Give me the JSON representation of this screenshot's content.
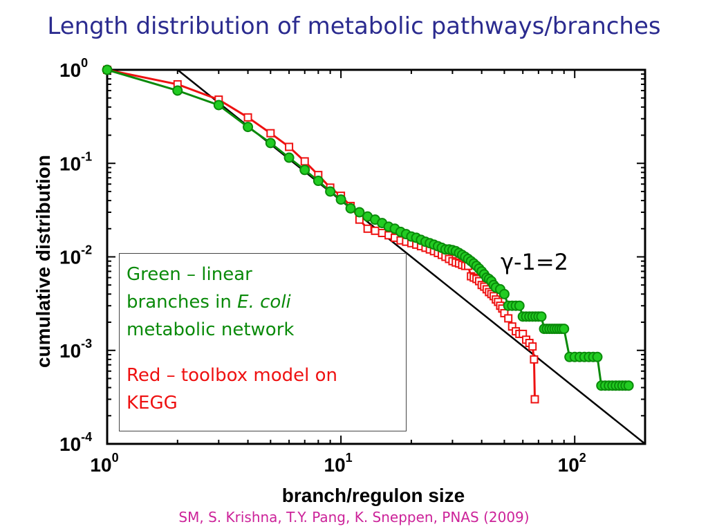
{
  "slide": {
    "title": "Length distribution of metabolic pathways/branches",
    "citation": "SM, S. Krishna, T.Y. Pang, K. Sneppen, PNAS (2009)"
  },
  "legend": {
    "green_line1": "Green – linear",
    "green_line2_pre": "branches in ",
    "green_line2_italic": "E. coli",
    "green_line3": "metabolic network",
    "red_line1": "Red – toolbox model on",
    "red_line2": "KEGG"
  },
  "annotation": {
    "gamma_symbol": "γ",
    "gamma_text": "-1=2"
  },
  "colors": {
    "green_series": "#0a8a0a",
    "green_marker_fill": "#22cc22",
    "red_series": "#ee1111",
    "fit_line": "#000000",
    "title": "#2b2b8f",
    "citation": "#cc2299"
  },
  "chart_data": {
    "type": "line",
    "title": "",
    "xlabel": "branch/regulon size",
    "ylabel": "cumulative distribution",
    "xscale": "log",
    "yscale": "log",
    "xlim": [
      1,
      200
    ],
    "ylim": [
      0.0001,
      1
    ],
    "x_ticks": [
      {
        "base": "10",
        "exp": "0",
        "value": 1
      },
      {
        "base": "10",
        "exp": "1",
        "value": 10
      },
      {
        "base": "10",
        "exp": "2",
        "value": 100
      }
    ],
    "y_ticks": [
      {
        "base": "10",
        "exp": "0",
        "value": 1
      },
      {
        "base": "10",
        "exp": "-1",
        "value": 0.1
      },
      {
        "base": "10",
        "exp": "-2",
        "value": 0.01
      },
      {
        "base": "10",
        "exp": "-3",
        "value": 0.001
      },
      {
        "base": "10",
        "exp": "-4",
        "value": 0.0001
      }
    ],
    "legend_position": "bottom-left",
    "series": [
      {
        "name": "Green – linear branches in E. coli metabolic network",
        "color": "#0a8a0a",
        "marker": "circle",
        "x": [
          1,
          2,
          3,
          4,
          5,
          6,
          7,
          8,
          9,
          10,
          11,
          12,
          13,
          14,
          15,
          16,
          17,
          18,
          19,
          20,
          21,
          22,
          23,
          24,
          25,
          26,
          27,
          28,
          29,
          30,
          31,
          32,
          33,
          34,
          35,
          36,
          37,
          38,
          39,
          40,
          41,
          42,
          43,
          44,
          45,
          46,
          48,
          50,
          52,
          54,
          56,
          58,
          60,
          62,
          64,
          66,
          68,
          70,
          72,
          74,
          76,
          78,
          80,
          82,
          84,
          86,
          88,
          90,
          95,
          100,
          105,
          110,
          115,
          120,
          125,
          130,
          135,
          140,
          145,
          150,
          155,
          160,
          165,
          170
        ],
        "y": [
          1,
          0.6,
          0.42,
          0.245,
          0.165,
          0.115,
          0.085,
          0.065,
          0.05,
          0.041,
          0.033,
          0.03,
          0.027,
          0.025,
          0.023,
          0.021,
          0.02,
          0.0185,
          0.0175,
          0.0165,
          0.016,
          0.0152,
          0.0145,
          0.014,
          0.0135,
          0.013,
          0.0125,
          0.012,
          0.012,
          0.0118,
          0.0115,
          0.011,
          0.0105,
          0.01,
          0.0095,
          0.009,
          0.0085,
          0.008,
          0.0075,
          0.007,
          0.0065,
          0.006,
          0.0058,
          0.0055,
          0.005,
          0.0047,
          0.0045,
          0.004,
          0.003,
          0.003,
          0.003,
          0.003,
          0.0023,
          0.0023,
          0.0023,
          0.0023,
          0.0023,
          0.0023,
          0.0023,
          0.0017,
          0.0017,
          0.0017,
          0.0017,
          0.0017,
          0.0017,
          0.0017,
          0.0017,
          0.0017,
          0.00085,
          0.00085,
          0.00085,
          0.00085,
          0.00085,
          0.00085,
          0.00085,
          0.00042,
          0.00042,
          0.00042,
          0.00042,
          0.00042,
          0.00042,
          0.00042,
          0.00042,
          0.00042
        ]
      },
      {
        "name": "Red – toolbox model on KEGG",
        "color": "#ee1111",
        "marker": "square",
        "x": [
          1,
          2,
          3,
          4,
          5,
          6,
          7,
          8,
          9,
          10,
          11,
          12,
          13,
          14,
          15,
          16,
          17,
          18,
          19,
          20,
          21,
          22,
          23,
          24,
          25,
          26,
          27,
          28,
          29,
          30,
          31,
          32,
          33,
          34,
          35,
          36,
          37,
          38,
          39,
          40,
          41,
          42,
          43,
          44,
          45,
          46,
          47,
          48,
          49,
          50,
          52,
          54,
          56,
          58,
          60,
          62,
          64,
          66,
          67,
          67.5
        ],
        "y": [
          1,
          0.7,
          0.48,
          0.31,
          0.21,
          0.15,
          0.105,
          0.075,
          0.055,
          0.045,
          0.035,
          0.025,
          0.02,
          0.019,
          0.018,
          0.017,
          0.016,
          0.015,
          0.0145,
          0.014,
          0.0135,
          0.013,
          0.0125,
          0.012,
          0.0115,
          0.011,
          0.0105,
          0.01,
          0.0095,
          0.009,
          0.0087,
          0.0085,
          0.0082,
          0.008,
          0.008,
          0.0062,
          0.006,
          0.0058,
          0.0055,
          0.005,
          0.0048,
          0.0045,
          0.0042,
          0.004,
          0.0038,
          0.0035,
          0.0033,
          0.003,
          0.0028,
          0.0025,
          0.0022,
          0.0018,
          0.0016,
          0.0015,
          0.0015,
          0.0013,
          0.0012,
          0.0011,
          0.0008,
          0.0003
        ]
      },
      {
        "name": "",
        "color": "#000000",
        "marker": "none",
        "x": [
          2,
          200
        ],
        "y": [
          1,
          0.0001
        ]
      }
    ]
  }
}
